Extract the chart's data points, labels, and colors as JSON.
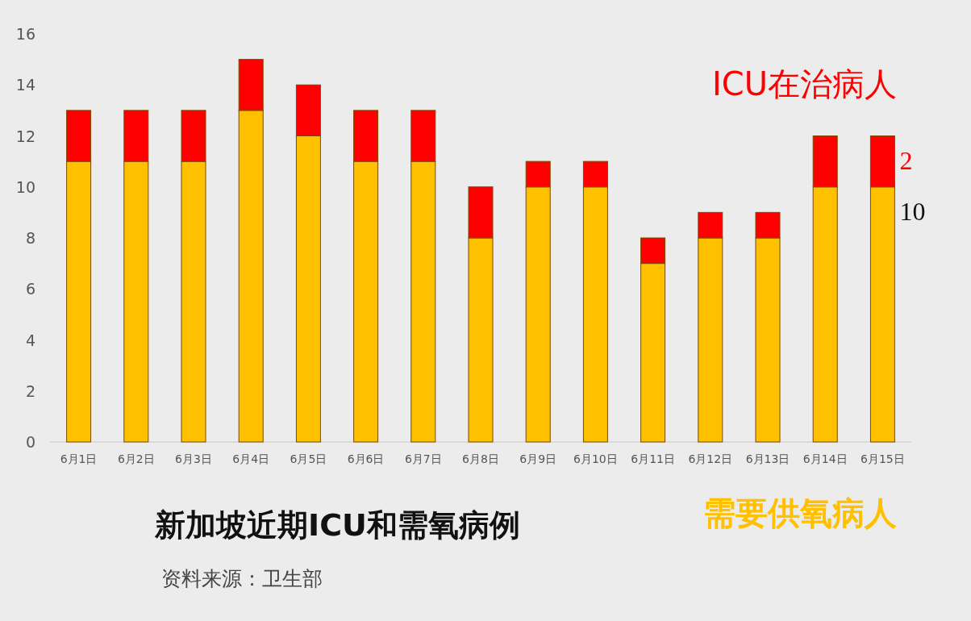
{
  "chart_data": {
    "type": "bar",
    "stacked": true,
    "title": "新加坡近期ICU和需氧病例",
    "annotations": [
      "资料来源：卫生部"
    ],
    "categories": [
      "6月1日",
      "6月2日",
      "6月3日",
      "6月4日",
      "6月5日",
      "6月6日",
      "6月7日",
      "6月8日",
      "6月9日",
      "6月10日",
      "6月11日",
      "6月12日",
      "6月13日",
      "6月14日",
      "6月15日"
    ],
    "series": [
      {
        "name": "需要供氧病人",
        "color": "#ffc000",
        "values": [
          11,
          11,
          11,
          13,
          12,
          11,
          11,
          8,
          10,
          10,
          7,
          8,
          8,
          10,
          10
        ],
        "value_labels": [
          null,
          null,
          null,
          null,
          null,
          null,
          null,
          null,
          null,
          null,
          null,
          null,
          null,
          null,
          "10"
        ]
      },
      {
        "name": "ICU在治病人",
        "color": "#ff0000",
        "values": [
          2,
          2,
          2,
          2,
          2,
          2,
          2,
          2,
          1,
          1,
          1,
          1,
          1,
          2,
          2
        ],
        "value_labels": [
          null,
          null,
          null,
          null,
          null,
          null,
          null,
          null,
          null,
          null,
          null,
          null,
          null,
          null,
          "2"
        ]
      }
    ],
    "ylim": [
      0,
      16
    ],
    "yticks": [
      0,
      2,
      4,
      6,
      8,
      10,
      12,
      14,
      16
    ],
    "grid": false,
    "legend": "right"
  }
}
